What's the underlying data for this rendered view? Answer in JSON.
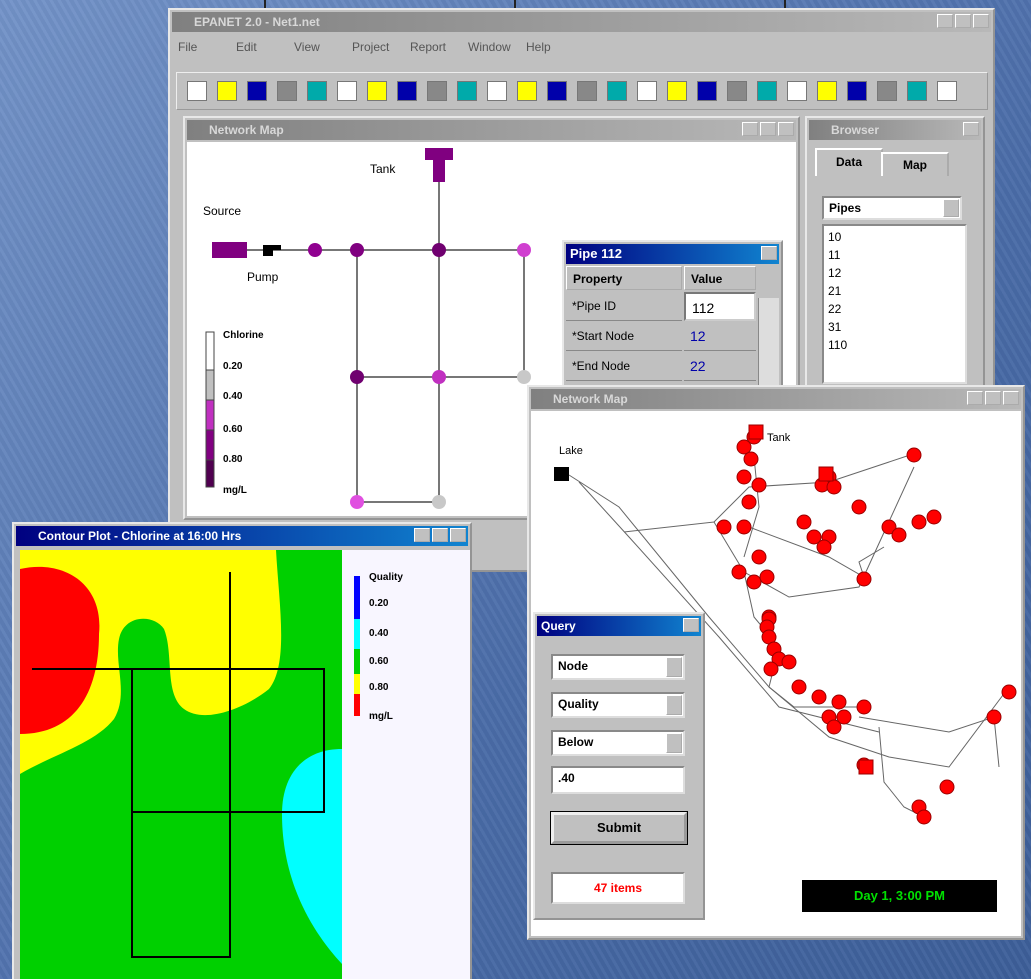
{
  "main_window": {
    "title": "EPANET 2.0 - Net1.net",
    "menu": [
      "File",
      "Edit",
      "View",
      "Project",
      "Report",
      "Window",
      "Help"
    ]
  },
  "network_map": {
    "title": "Network Map",
    "labels": {
      "tank": "Tank",
      "source": "Source",
      "pump": "Pump"
    },
    "legend": {
      "title": "Chlorine",
      "items": [
        "0.20",
        "0.40",
        "0.60",
        "0.80"
      ],
      "unit": "mg/L"
    }
  },
  "property_editor": {
    "title": "Pipe 112",
    "headers": [
      "Property",
      "Value"
    ],
    "rows": [
      [
        "*Pipe ID",
        "112"
      ],
      [
        "*Start Node",
        "12"
      ],
      [
        "*End Node",
        "22"
      ]
    ]
  },
  "browser": {
    "title": "Browser",
    "tabs": [
      "Data",
      "Map"
    ],
    "selector": "Pipes",
    "items": [
      "10",
      "11",
      "12",
      "21",
      "22",
      "31",
      "110"
    ]
  },
  "contour_plot": {
    "title": "Contour Plot - Chlorine at 16:00 Hrs",
    "legend": {
      "title": "Quality",
      "items": [
        "0.20",
        "0.40",
        "0.60",
        "0.80"
      ],
      "unit": "mg/L"
    }
  },
  "network_map_2": {
    "title": "Network Map",
    "labels": {
      "lake": "Lake",
      "tank": "Tank"
    },
    "status": "Day 1, 3:00 PM"
  },
  "query": {
    "title": "Query",
    "fields": [
      "Node",
      "Quality",
      "Below"
    ],
    "value": ".40",
    "button": "Submit",
    "result": "47 items"
  }
}
